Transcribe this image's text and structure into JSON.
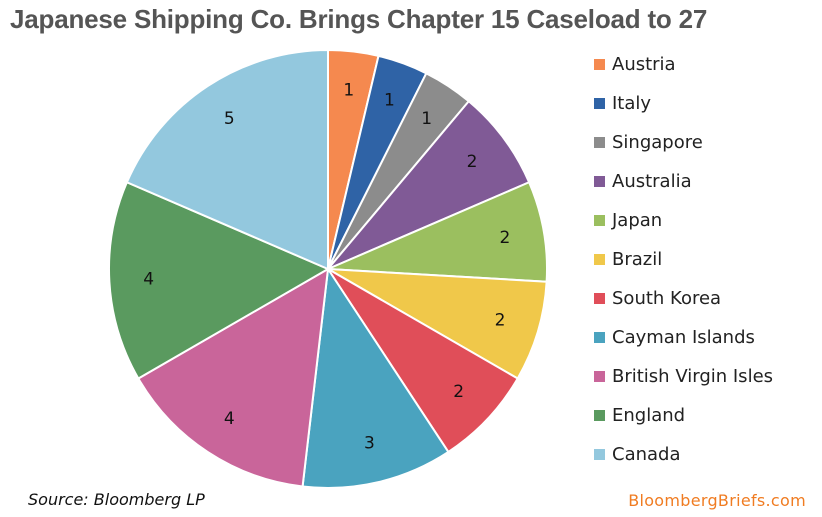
{
  "chart_data": {
    "type": "pie",
    "title": "Japanese Shipping Co. Brings Chapter 15 Caseload to 27",
    "legend_position": "right",
    "slices": [
      {
        "label": "Austria",
        "value": 1,
        "color": "#f5894f"
      },
      {
        "label": "Italy",
        "value": 1,
        "color": "#2f63a6"
      },
      {
        "label": "Singapore",
        "value": 1,
        "color": "#8c8c8c"
      },
      {
        "label": "Australia",
        "value": 2,
        "color": "#805a96"
      },
      {
        "label": "Japan",
        "value": 2,
        "color": "#9bbf5f"
      },
      {
        "label": "Brazil",
        "value": 2,
        "color": "#f0c84a"
      },
      {
        "label": "South Korea",
        "value": 2,
        "color": "#e04e59"
      },
      {
        "label": "Cayman Islands",
        "value": 3,
        "color": "#4aa3bf"
      },
      {
        "label": "British Virgin Isles",
        "value": 4,
        "color": "#c9659a"
      },
      {
        "label": "England",
        "value": 4,
        "color": "#5a9a5f"
      },
      {
        "label": "Canada",
        "value": 5,
        "color": "#93c8de"
      }
    ]
  },
  "footer": {
    "source": "Source: Bloomberg LP",
    "brand": "BloombergBriefs.com"
  }
}
